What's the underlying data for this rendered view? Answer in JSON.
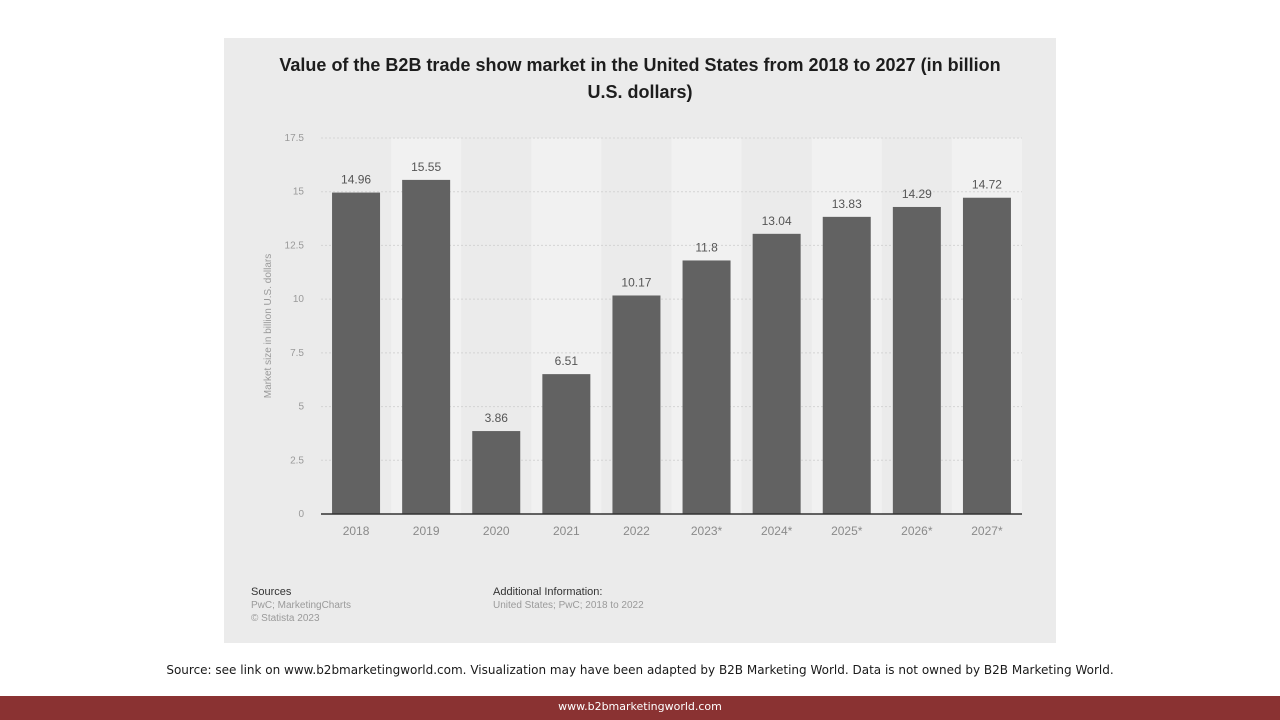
{
  "chart_data": {
    "type": "bar",
    "title": "Value of the B2B trade show market in the United States from 2018 to 2027 (in billion U.S. dollars)",
    "xlabel": "",
    "ylabel": "Market size in billion U.S. dollars",
    "categories": [
      "2018",
      "2019",
      "2020",
      "2021",
      "2022",
      "2023*",
      "2024*",
      "2025*",
      "2026*",
      "2027*"
    ],
    "values": [
      14.96,
      15.55,
      3.86,
      6.51,
      10.17,
      11.8,
      13.04,
      13.83,
      14.29,
      14.72
    ],
    "value_labels": [
      "14.96",
      "15.55",
      "3.86",
      "6.51",
      "10.17",
      "11.8",
      "13.04",
      "13.83",
      "14.29",
      "14.72"
    ],
    "ylim": [
      0,
      17.5
    ],
    "yticks": [
      "0",
      "2.5",
      "5",
      "7.5",
      "10",
      "12.5",
      "15",
      "17.5"
    ],
    "grid": true,
    "legend": "none",
    "colors": {
      "bar": "#626262",
      "panel": "#ebebeb",
      "band": "#f1f1f1"
    }
  },
  "sources": {
    "heading": "Sources",
    "lines": [
      "PwC; MarketingCharts",
      "© Statista 2023"
    ]
  },
  "additional_info": {
    "heading": "Additional Information:",
    "lines": [
      "United States; PwC; 2018 to 2022"
    ]
  },
  "source_note": "Source: see link on www.b2bmarketingworld.com. Visualization may have been adapted by B2B Marketing World. Data is not owned by B2B Marketing World.",
  "footer_url": "www.b2bmarketingworld.com",
  "footer_color": "#8a3232"
}
